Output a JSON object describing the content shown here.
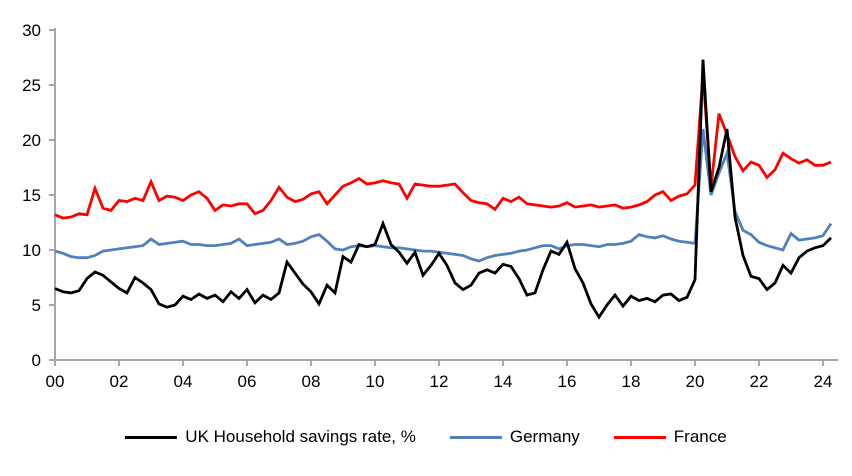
{
  "chart_data": {
    "type": "line",
    "title": "",
    "xlabel": "",
    "ylabel": "",
    "grid": false,
    "legend_position": "bottom",
    "axis_color": "#A6A6A6",
    "text_color": "#000000",
    "ylim": [
      0,
      30
    ],
    "y_ticks": [
      0,
      5,
      10,
      15,
      20,
      25,
      30
    ],
    "x_ticks": [
      2000,
      2002,
      2004,
      2006,
      2008,
      2010,
      2012,
      2014,
      2016,
      2018,
      2020,
      2022,
      2024
    ],
    "x_tick_labels": [
      "00",
      "02",
      "04",
      "06",
      "08",
      "10",
      "12",
      "14",
      "16",
      "18",
      "20",
      "22",
      "24"
    ],
    "x_start": 2000,
    "x_step": 0.25,
    "x_unit": "year-quarterly",
    "series": [
      {
        "name": "UK Household savings rate, %",
        "color": "#000000",
        "values": [
          6.5,
          6.2,
          6.1,
          6.3,
          7.4,
          8.0,
          7.7,
          7.1,
          6.5,
          6.1,
          7.5,
          7.0,
          6.4,
          5.1,
          4.8,
          5.0,
          5.8,
          5.5,
          6.0,
          5.6,
          5.9,
          5.3,
          6.2,
          5.6,
          6.4,
          5.2,
          5.9,
          5.5,
          6.1,
          8.9,
          7.9,
          6.9,
          6.2,
          5.1,
          6.8,
          6.1,
          9.4,
          8.9,
          10.5,
          10.3,
          10.5,
          12.4,
          10.5,
          9.8,
          8.8,
          9.8,
          7.7,
          8.6,
          9.7,
          8.6,
          7.0,
          6.4,
          6.8,
          7.9,
          8.2,
          7.9,
          8.7,
          8.5,
          7.4,
          5.9,
          6.1,
          8.2,
          9.9,
          9.6,
          10.7,
          8.3,
          7.0,
          5.1,
          3.9,
          5.0,
          5.9,
          4.9,
          5.8,
          5.4,
          5.6,
          5.3,
          5.9,
          6.0,
          5.4,
          5.7,
          7.3,
          27.3,
          15.3,
          17.5,
          21.0,
          13.0,
          9.5,
          7.6,
          7.4,
          6.4,
          7.0,
          8.6,
          7.9,
          9.3,
          9.9,
          10.2,
          10.4,
          11.1
        ]
      },
      {
        "name": "Germany",
        "color": "#4F81BD",
        "values": [
          9.9,
          9.7,
          9.4,
          9.3,
          9.3,
          9.5,
          9.9,
          10.0,
          10.1,
          10.2,
          10.3,
          10.4,
          11.0,
          10.5,
          10.6,
          10.7,
          10.8,
          10.5,
          10.5,
          10.4,
          10.4,
          10.5,
          10.6,
          11.0,
          10.4,
          10.5,
          10.6,
          10.7,
          11.0,
          10.5,
          10.6,
          10.8,
          11.2,
          11.4,
          10.8,
          10.1,
          10.0,
          10.3,
          10.4,
          10.3,
          10.4,
          10.3,
          10.2,
          10.2,
          10.1,
          10.0,
          9.9,
          9.9,
          9.8,
          9.7,
          9.6,
          9.5,
          9.2,
          9.0,
          9.3,
          9.5,
          9.6,
          9.7,
          9.9,
          10.0,
          10.2,
          10.4,
          10.4,
          10.1,
          10.4,
          10.5,
          10.5,
          10.4,
          10.3,
          10.5,
          10.5,
          10.6,
          10.8,
          11.4,
          11.2,
          11.1,
          11.3,
          11.0,
          10.8,
          10.7,
          10.6,
          21.0,
          15.0,
          17.0,
          18.8,
          13.5,
          11.8,
          11.4,
          10.7,
          10.4,
          10.2,
          10.0,
          11.5,
          10.9,
          11.0,
          11.1,
          11.3,
          12.4
        ]
      },
      {
        "name": "France",
        "color": "#FF0000",
        "values": [
          13.2,
          12.9,
          13.0,
          13.3,
          13.2,
          15.6,
          13.8,
          13.6,
          14.5,
          14.4,
          14.7,
          14.5,
          16.2,
          14.5,
          14.9,
          14.8,
          14.5,
          15.0,
          15.3,
          14.7,
          13.6,
          14.1,
          14.0,
          14.2,
          14.2,
          13.3,
          13.6,
          14.5,
          15.7,
          14.8,
          14.4,
          14.6,
          15.1,
          15.3,
          14.2,
          15.0,
          15.8,
          16.1,
          16.5,
          16.0,
          16.1,
          16.3,
          16.1,
          16.0,
          14.7,
          16.0,
          15.9,
          15.8,
          15.8,
          15.9,
          16.0,
          15.2,
          14.5,
          14.3,
          14.2,
          13.7,
          14.7,
          14.4,
          14.8,
          14.2,
          14.1,
          14.0,
          13.9,
          14.0,
          14.3,
          13.9,
          14.0,
          14.1,
          13.9,
          14.0,
          14.1,
          13.8,
          13.9,
          14.1,
          14.4,
          15.0,
          15.3,
          14.5,
          14.9,
          15.1,
          15.9,
          26.0,
          15.7,
          22.4,
          20.5,
          18.5,
          17.2,
          18.0,
          17.7,
          16.6,
          17.3,
          18.8,
          18.3,
          17.9,
          18.2,
          17.7,
          17.7,
          18.0
        ]
      }
    ]
  }
}
